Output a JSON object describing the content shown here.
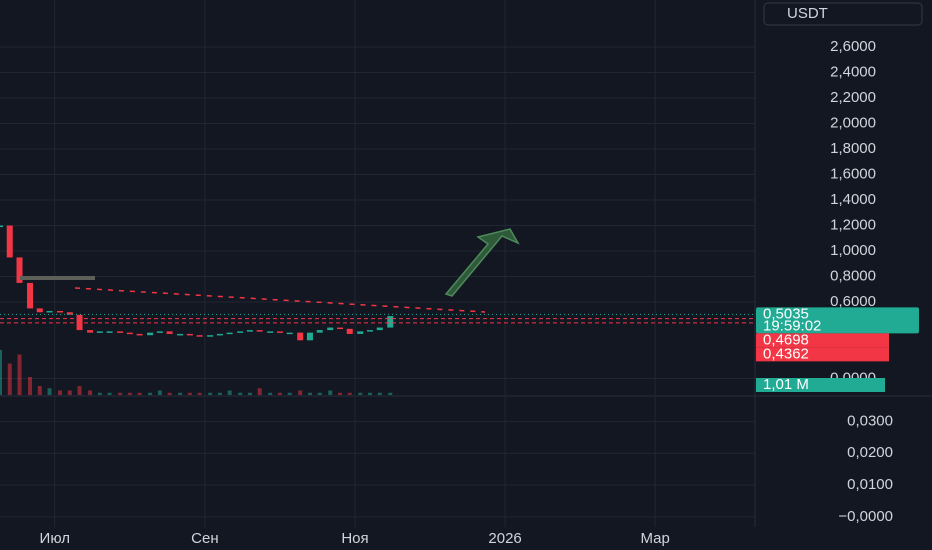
{
  "chart_data": {
    "type": "candlestick",
    "currency": "USDT",
    "x": [
      -0.73,
      -0.6,
      -0.47,
      -0.33,
      -0.2,
      -0.07,
      0.07,
      0.2,
      0.33,
      0.47,
      0.6,
      0.73,
      0.87,
      1.0,
      1.13,
      1.27,
      1.4,
      1.53,
      1.67,
      1.8,
      1.93,
      2.07,
      2.2,
      2.33,
      2.47,
      2.6,
      2.73,
      2.87,
      3.0,
      3.13,
      3.27,
      3.4,
      3.53,
      3.67,
      3.8,
      3.93,
      4.07,
      4.2,
      4.33,
      4.47
    ],
    "values": [
      1.2,
      0.95,
      0.75,
      0.55,
      0.52,
      0.53,
      0.52,
      0.5,
      0.38,
      0.36,
      0.37,
      0.37,
      0.36,
      0.35,
      0.34,
      0.36,
      0.37,
      0.35,
      0.35,
      0.34,
      0.33,
      0.34,
      0.35,
      0.36,
      0.37,
      0.38,
      0.37,
      0.37,
      0.36,
      0.36,
      0.3,
      0.36,
      0.38,
      0.4,
      0.39,
      0.35,
      0.37,
      0.38,
      0.4,
      0.49
    ],
    "volume": [
      20,
      14,
      18,
      8,
      4,
      3,
      2,
      2,
      4,
      2,
      1,
      1,
      1,
      1,
      1,
      1,
      2,
      1,
      1,
      1,
      1,
      1,
      1,
      2,
      1,
      1,
      3,
      1,
      1,
      1,
      2,
      1,
      1,
      2,
      1,
      1,
      1,
      1,
      1,
      1
    ],
    "xlim": [
      -0.73,
      9.33
    ],
    "xticks": [
      {
        "value": 0,
        "label": "Июл"
      },
      {
        "value": 2,
        "label": "Сен"
      },
      {
        "value": 4,
        "label": "Ноя"
      },
      {
        "value": 6,
        "label": "2026"
      },
      {
        "value": 8,
        "label": "Мар"
      }
    ],
    "ylim": [
      -0.129,
      2.969
    ],
    "yticks": [
      {
        "value": 0,
        "label": "0,0000"
      },
      {
        "value": 0.6,
        "label": "0,6000"
      },
      {
        "value": 0.8,
        "label": "0,8000"
      },
      {
        "value": 1,
        "label": "1,0000"
      },
      {
        "value": 1.2,
        "label": "1,2000"
      },
      {
        "value": 1.4,
        "label": "1,4000"
      },
      {
        "value": 1.6,
        "label": "1,6000"
      },
      {
        "value": 1.8,
        "label": "1,8000"
      },
      {
        "value": 2,
        "label": "2,0000"
      },
      {
        "value": 2.2,
        "label": "2,2000"
      },
      {
        "value": 2.4,
        "label": "2,4000"
      },
      {
        "value": 2.6,
        "label": "2,6000"
      }
    ],
    "last_price": {
      "value": 0.5035,
      "label": "0,5035"
    },
    "countdown": "19:59:02",
    "price_levels": [
      {
        "value": 0.4698,
        "label": "0,4698"
      },
      {
        "value": 0.4362,
        "label": "0,4362"
      }
    ],
    "last_volume": {
      "value": 1.01,
      "label": "1,01 M"
    },
    "volume_pane": {
      "ylim": [
        -0.0032,
        0.0383
      ],
      "yticks": [
        {
          "value": 0,
          "label": "−0,0000"
        },
        {
          "value": 0.01,
          "label": "0,0100"
        },
        {
          "value": 0.02,
          "label": "0,0200"
        },
        {
          "value": 0.03,
          "label": "0,0300"
        }
      ]
    },
    "up_color": "#22ab94",
    "down_color": "#f23645"
  }
}
